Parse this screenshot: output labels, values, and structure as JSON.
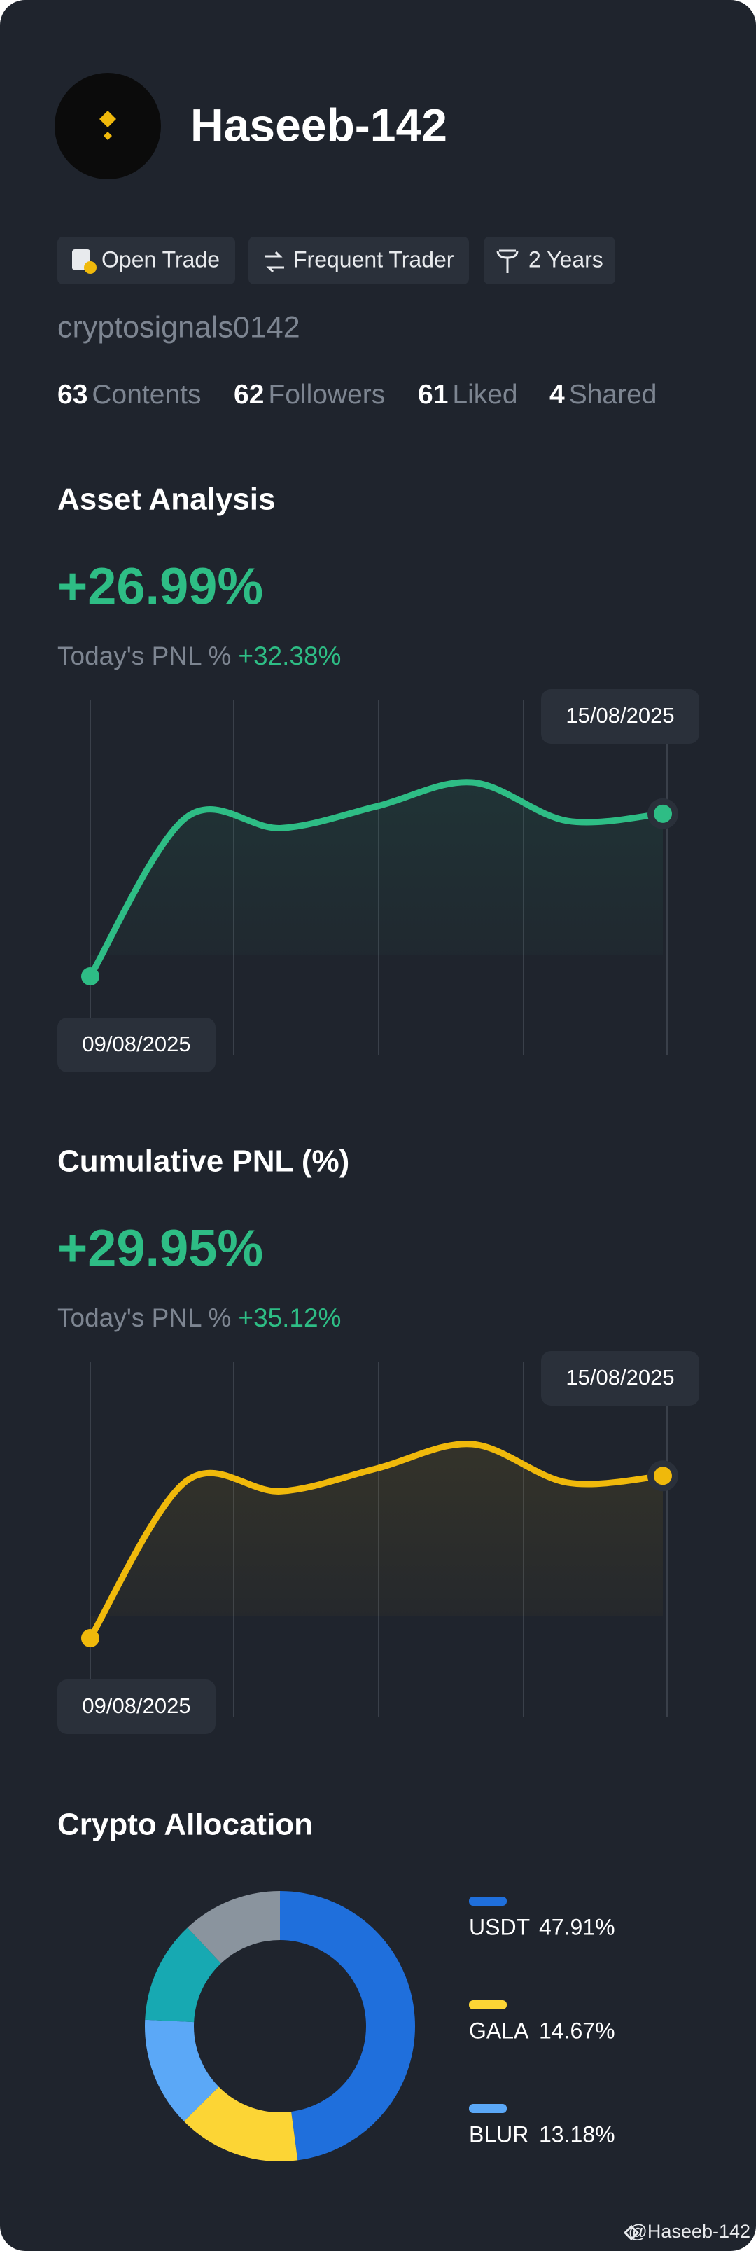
{
  "profile": {
    "name": "Haseeb-142",
    "badges": [
      "Open Trade",
      "Frequent Trader",
      "2 Years"
    ],
    "username": "cryptosignals0142",
    "stats": [
      {
        "value": 63,
        "label": "Contents"
      },
      {
        "value": 62,
        "label": "Followers"
      },
      {
        "value": 61,
        "label": "Liked"
      },
      {
        "value": 4,
        "label": "Shared"
      }
    ]
  },
  "chart_data": [
    {
      "type": "line",
      "title": "Asset Analysis",
      "headline": "+26.99%",
      "subtitle": "Today's PNL %",
      "subtitle_value": "+32.38%",
      "x": [
        "09/08/2025",
        null,
        null,
        null,
        null,
        null,
        "15/08/2025"
      ],
      "series": [
        {
          "color": "#2ebd85",
          "values": [
            0,
            26.3,
            24.6,
            28.2,
            32.2,
            25.8,
            26.99
          ]
        }
      ]
    },
    {
      "type": "line",
      "title": "Cumulative PNL (%)",
      "headline": "+29.95%",
      "subtitle": "Today's PNL %",
      "subtitle_value": "+35.12%",
      "x": [
        "09/08/2025",
        null,
        null,
        null,
        null,
        null,
        "15/08/2025"
      ],
      "series": [
        {
          "color": "#f0b90b",
          "values": [
            0,
            28.9,
            27.1,
            31.3,
            35.8,
            28.7,
            29.95
          ]
        }
      ]
    },
    {
      "type": "donut",
      "title": "Crypto Allocation",
      "categories": [
        "USDT",
        "GALA",
        "BLUR",
        null,
        null
      ],
      "values": [
        47.91,
        14.67,
        13.18,
        12.24,
        12.0
      ],
      "value_labels": [
        "47.91%",
        "14.67%",
        "13.18%",
        null,
        null
      ],
      "colors": [
        "#1f6fdc",
        "#fcd535",
        "#5ba8f7",
        "#17a9b2",
        "#8a949e"
      ]
    }
  ],
  "footer": "@Haseeb-142"
}
